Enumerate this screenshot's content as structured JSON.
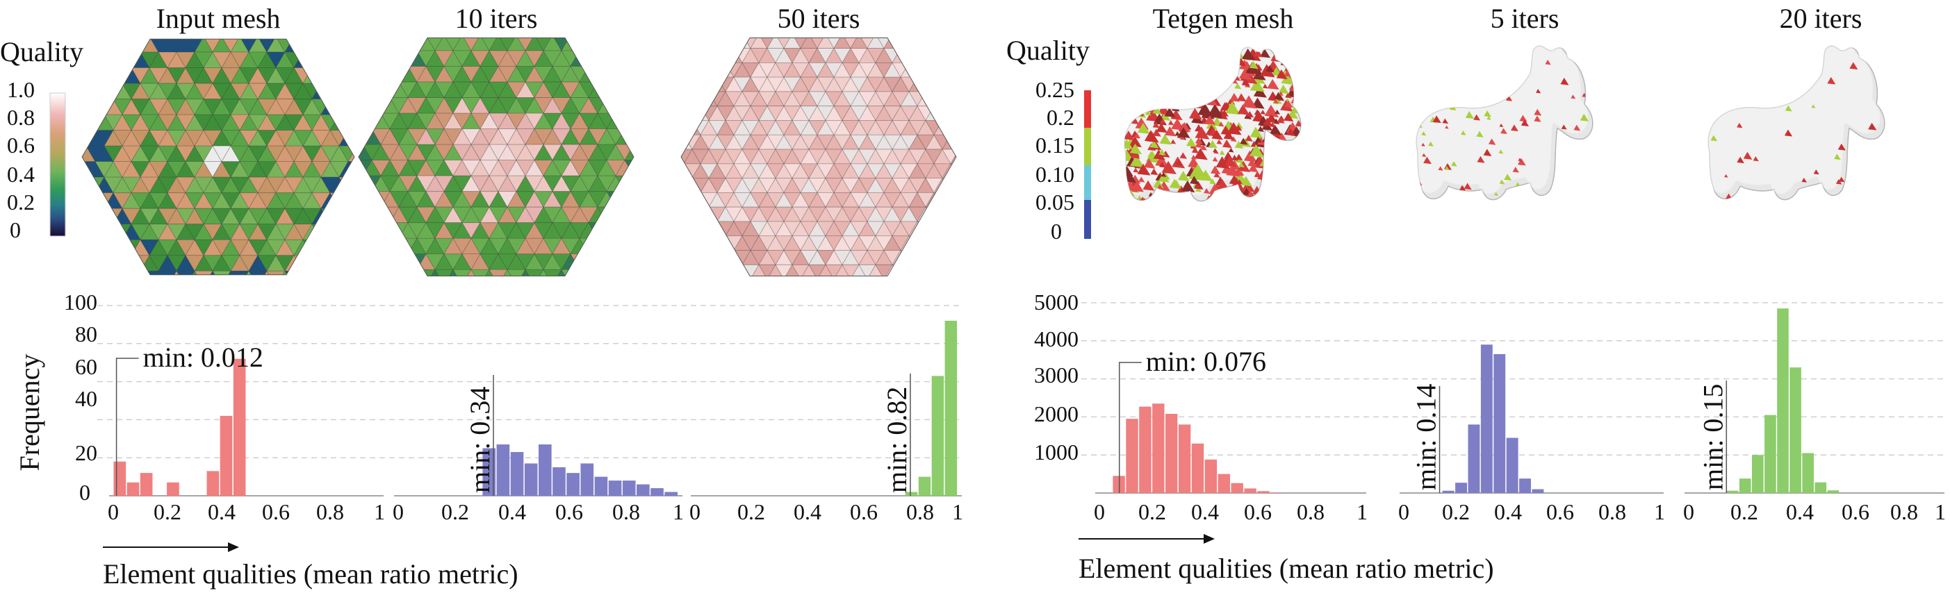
{
  "left": {
    "panel_titles": [
      "Input mesh",
      "10 iters",
      "50 iters"
    ],
    "legend": {
      "title": "Quality",
      "ticks": [
        "1.0",
        "0.8",
        "0.6",
        "0.4",
        "0.2",
        "0"
      ],
      "gradient_colors": [
        "#ffffff",
        "#f0b0b0",
        "#d79c7a",
        "#b9a660",
        "#74b55c",
        "#2e9a4a",
        "#2a7f86",
        "#2a5e8c",
        "#2b3a7c",
        "#1a1040"
      ]
    },
    "meshes": [
      {
        "name": "input-mesh",
        "palette": [
          "#3f8f3a",
          "#5aa548",
          "#79b45b",
          "#c79568",
          "#d59b74",
          "#2a7c5c",
          "#1d4f7d"
        ]
      },
      {
        "name": "10-iters-mesh",
        "palette": [
          "#4c9a40",
          "#6aae52",
          "#cf9777",
          "#e6b3b0",
          "#eec7c3",
          "#f3dada",
          "#2f7a55"
        ]
      },
      {
        "name": "50-iters-mesh",
        "palette": [
          "#eec2bf",
          "#f1cfcc",
          "#e8b4b0",
          "#f6dddb",
          "#e9e3e3",
          "#dca29d"
        ]
      }
    ],
    "xlabel": "Element qualities (mean ratio metric)",
    "ylabel": "Frequency",
    "y_ticks": [
      "100",
      "80",
      "60",
      "40",
      "20",
      "0"
    ],
    "x_ticks": [
      "0",
      "0.2",
      "0.4",
      "0.6",
      "0.8",
      "1"
    ]
  },
  "right": {
    "panel_titles": [
      "Tetgen mesh",
      "5 iters",
      "20 iters"
    ],
    "legend": {
      "title": "Quality",
      "ticks": [
        "0.25",
        "0.2",
        "0.15",
        "0.10",
        "0.05",
        "0"
      ],
      "segment_colors": [
        "#e53434",
        "#a9cf3a",
        "#6cc8dc",
        "#3c4fa6"
      ]
    },
    "y_ticks": [
      "5000",
      "4000",
      "3000",
      "2000",
      "1000"
    ],
    "x_ticks": [
      "0",
      "0.2",
      "0.4",
      "0.6",
      "0.8",
      "1"
    ],
    "xlabel": "Element qualities (mean ratio metric)"
  },
  "chart_data": [
    {
      "type": "bar",
      "panel": "Input mesh",
      "ylabel": "Frequency",
      "xlabel": "Element qualities (mean ratio metric)",
      "xlim": [
        0,
        1
      ],
      "ylim": [
        0,
        100
      ],
      "bin_width": 0.05,
      "color": "#f07f7f",
      "bins": [
        0,
        0.05,
        0.1,
        0.15,
        0.2,
        0.25,
        0.3,
        0.35,
        0.4,
        0.45,
        0.5
      ],
      "values": [
        18,
        7,
        12,
        0,
        7,
        0,
        0,
        13,
        42,
        72,
        0
      ],
      "annotation": "min: 0.012",
      "min": 0.012
    },
    {
      "type": "bar",
      "panel": "10 iters",
      "xlim": [
        0,
        1
      ],
      "ylim": [
        0,
        100
      ],
      "bin_width": 0.05,
      "color": "#7e7ec7",
      "bins": [
        0.3,
        0.35,
        0.4,
        0.45,
        0.5,
        0.55,
        0.6,
        0.65,
        0.7,
        0.75,
        0.8,
        0.85,
        0.9,
        0.95
      ],
      "values": [
        25,
        27,
        23,
        17,
        27,
        15,
        12,
        17,
        10,
        8,
        8,
        6,
        4,
        2
      ],
      "annotation": "min: 0.34",
      "min": 0.34
    },
    {
      "type": "bar",
      "panel": "50 iters",
      "xlim": [
        0,
        1
      ],
      "ylim": [
        0,
        100
      ],
      "bin_width": 0.05,
      "color": "#8ccc6a",
      "bins": [
        0.8,
        0.85,
        0.9,
        0.95
      ],
      "values": [
        2,
        10,
        63,
        92
      ],
      "annotation": "min: 0.82",
      "min": 0.82
    },
    {
      "type": "bar",
      "panel": "Tetgen mesh",
      "xlim": [
        0,
        1
      ],
      "ylim": [
        0,
        5000
      ],
      "bin_width": 0.05,
      "color": "#f07f7f",
      "bins": [
        0.05,
        0.1,
        0.15,
        0.2,
        0.25,
        0.3,
        0.35,
        0.4,
        0.45,
        0.5,
        0.55,
        0.6,
        0.65
      ],
      "values": [
        450,
        1950,
        2270,
        2350,
        2080,
        1800,
        1300,
        880,
        500,
        260,
        120,
        50,
        15
      ],
      "annotation": "min: 0.076",
      "min": 0.076
    },
    {
      "type": "bar",
      "panel": "5 iters",
      "xlim": [
        0,
        1
      ],
      "ylim": [
        0,
        5000
      ],
      "bin_width": 0.05,
      "color": "#7e7ec7",
      "bins": [
        0.15,
        0.2,
        0.25,
        0.3,
        0.35,
        0.4,
        0.45,
        0.5
      ],
      "values": [
        60,
        270,
        1800,
        3900,
        3650,
        1450,
        380,
        100
      ],
      "annotation": "min: 0.14",
      "min": 0.14
    },
    {
      "type": "bar",
      "panel": "20 iters",
      "xlim": [
        0,
        1
      ],
      "ylim": [
        0,
        5000
      ],
      "bin_width": 0.05,
      "color": "#8ccc6a",
      "bins": [
        0.15,
        0.2,
        0.25,
        0.3,
        0.35,
        0.4,
        0.45,
        0.5,
        0.55
      ],
      "values": [
        60,
        380,
        1000,
        2050,
        4850,
        3300,
        1050,
        280,
        70
      ],
      "annotation": "min: 0.15",
      "min": 0.15
    }
  ]
}
